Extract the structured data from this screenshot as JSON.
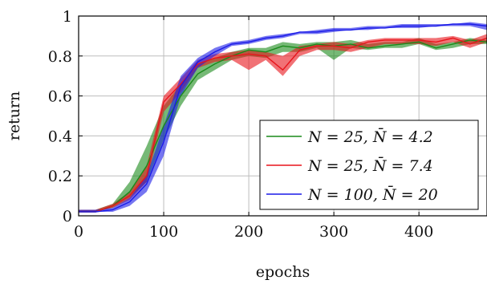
{
  "chart_data": {
    "type": "line",
    "title": "",
    "xlabel": "epochs",
    "ylabel": "return",
    "xlim": [
      0,
      480
    ],
    "ylim": [
      0,
      1
    ],
    "xticks": [
      0,
      100,
      200,
      300,
      400
    ],
    "xtick_labels": [
      "0",
      "100",
      "200",
      "300",
      "400"
    ],
    "yticks": [
      0,
      0.2,
      0.4,
      0.6,
      0.8,
      1
    ],
    "ytick_labels": [
      "0",
      "0.2",
      "0.4",
      "0.6",
      "0.8",
      "1"
    ],
    "grid": true,
    "legend_position": "bottom-right",
    "x": [
      0,
      20,
      40,
      60,
      80,
      100,
      120,
      140,
      160,
      180,
      200,
      220,
      240,
      260,
      280,
      300,
      320,
      340,
      360,
      380,
      400,
      420,
      440,
      460,
      480
    ],
    "series": [
      {
        "name": "N = 25, N̄ = 4.2",
        "name_html": "<tspan>N</tspan><tspan font-style='normal'> = 25, </tspan><tspan>N̄</tspan><tspan font-style='normal'> = 4.2</tspan>",
        "color": "#1a8a1a",
        "mean": [
          0.02,
          0.02,
          0.05,
          0.12,
          0.25,
          0.45,
          0.6,
          0.71,
          0.76,
          0.8,
          0.83,
          0.82,
          0.85,
          0.84,
          0.86,
          0.85,
          0.86,
          0.84,
          0.85,
          0.86,
          0.87,
          0.84,
          0.86,
          0.88,
          0.87
        ],
        "lower": [
          0.02,
          0.02,
          0.04,
          0.09,
          0.17,
          0.38,
          0.55,
          0.68,
          0.73,
          0.78,
          0.8,
          0.79,
          0.82,
          0.82,
          0.84,
          0.78,
          0.84,
          0.83,
          0.84,
          0.84,
          0.86,
          0.83,
          0.84,
          0.86,
          0.86
        ],
        "upper": [
          0.03,
          0.03,
          0.06,
          0.17,
          0.35,
          0.55,
          0.66,
          0.76,
          0.79,
          0.82,
          0.84,
          0.84,
          0.87,
          0.86,
          0.87,
          0.87,
          0.88,
          0.86,
          0.87,
          0.87,
          0.89,
          0.86,
          0.87,
          0.89,
          0.88
        ]
      },
      {
        "name": "N = 25, N̄ = 7.4",
        "color": "#e8141b",
        "mean": [
          0.02,
          0.02,
          0.05,
          0.1,
          0.2,
          0.57,
          0.66,
          0.76,
          0.79,
          0.8,
          0.81,
          0.8,
          0.73,
          0.83,
          0.85,
          0.85,
          0.84,
          0.87,
          0.88,
          0.88,
          0.88,
          0.87,
          0.89,
          0.86,
          0.89
        ],
        "lower": [
          0.02,
          0.02,
          0.04,
          0.08,
          0.17,
          0.52,
          0.62,
          0.74,
          0.77,
          0.78,
          0.73,
          0.78,
          0.7,
          0.8,
          0.83,
          0.83,
          0.82,
          0.84,
          0.86,
          0.86,
          0.86,
          0.85,
          0.87,
          0.84,
          0.87
        ],
        "upper": [
          0.03,
          0.03,
          0.06,
          0.12,
          0.25,
          0.6,
          0.69,
          0.78,
          0.81,
          0.82,
          0.83,
          0.82,
          0.8,
          0.85,
          0.86,
          0.87,
          0.86,
          0.88,
          0.89,
          0.89,
          0.89,
          0.89,
          0.9,
          0.88,
          0.91
        ]
      },
      {
        "name": "N = 100, N̄ = 20",
        "color": "#1a1ae8",
        "mean": [
          0.02,
          0.02,
          0.03,
          0.07,
          0.16,
          0.37,
          0.65,
          0.77,
          0.82,
          0.86,
          0.87,
          0.89,
          0.9,
          0.92,
          0.92,
          0.93,
          0.93,
          0.94,
          0.94,
          0.95,
          0.95,
          0.95,
          0.96,
          0.96,
          0.95
        ],
        "lower": [
          0.02,
          0.02,
          0.02,
          0.05,
          0.12,
          0.3,
          0.6,
          0.74,
          0.8,
          0.85,
          0.86,
          0.88,
          0.89,
          0.91,
          0.91,
          0.92,
          0.93,
          0.93,
          0.94,
          0.94,
          0.94,
          0.95,
          0.95,
          0.95,
          0.93
        ],
        "upper": [
          0.03,
          0.03,
          0.04,
          0.09,
          0.2,
          0.45,
          0.7,
          0.79,
          0.84,
          0.87,
          0.88,
          0.9,
          0.91,
          0.92,
          0.93,
          0.94,
          0.94,
          0.95,
          0.95,
          0.96,
          0.96,
          0.96,
          0.96,
          0.97,
          0.96
        ]
      }
    ]
  }
}
